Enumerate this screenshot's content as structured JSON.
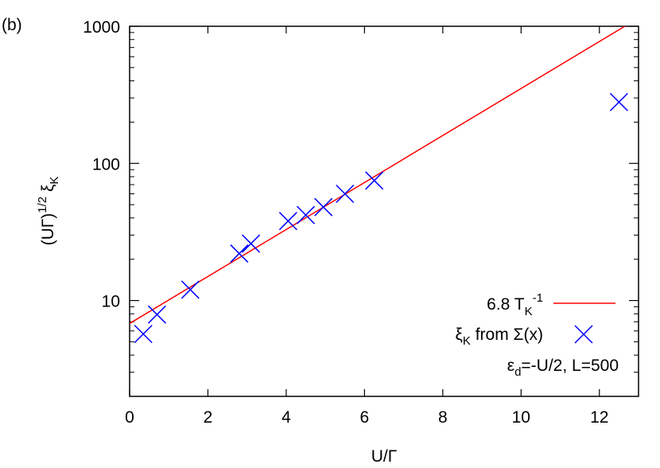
{
  "panel_label": "(b)",
  "chart_data": {
    "type": "scatter",
    "xlabel": "U/Γ",
    "ylabel": {
      "main": "(UΓ)",
      "sup": "1/2",
      "sym": "ξ",
      "sub": "K"
    },
    "xlim": [
      0,
      13
    ],
    "ylim": [
      2,
      1000
    ],
    "yscale": "log",
    "xticks": [
      0,
      2,
      4,
      6,
      8,
      10,
      12
    ],
    "yticks": [
      10,
      100,
      1000
    ],
    "grid": false,
    "legend_position": "bottom-right",
    "series": [
      {
        "name": "6.8 T_K^-1",
        "legend": {
          "main": "6.8 T",
          "sub": "K",
          "sup": "-1"
        },
        "kind": "line",
        "color": "#ff0000",
        "x": [
          0,
          12.65
        ],
        "y": [
          6.8,
          1000
        ]
      },
      {
        "name": "ξ_K from Σ(x)",
        "legend": {
          "sym": "ξ",
          "sub": "K",
          "rest": " from Σ(x)"
        },
        "kind": "points",
        "marker": "x",
        "color": "#0000ff",
        "x": [
          0.35,
          0.7,
          1.55,
          2.8,
          3.1,
          4.05,
          4.5,
          4.95,
          5.5,
          6.25,
          12.5
        ],
        "y": [
          5.7,
          7.9,
          12,
          22,
          26,
          38,
          42,
          48,
          60,
          75,
          280
        ]
      }
    ],
    "annotation": {
      "sym": "ε",
      "sub": "d",
      "rest": "=-U/2, L=500"
    }
  }
}
